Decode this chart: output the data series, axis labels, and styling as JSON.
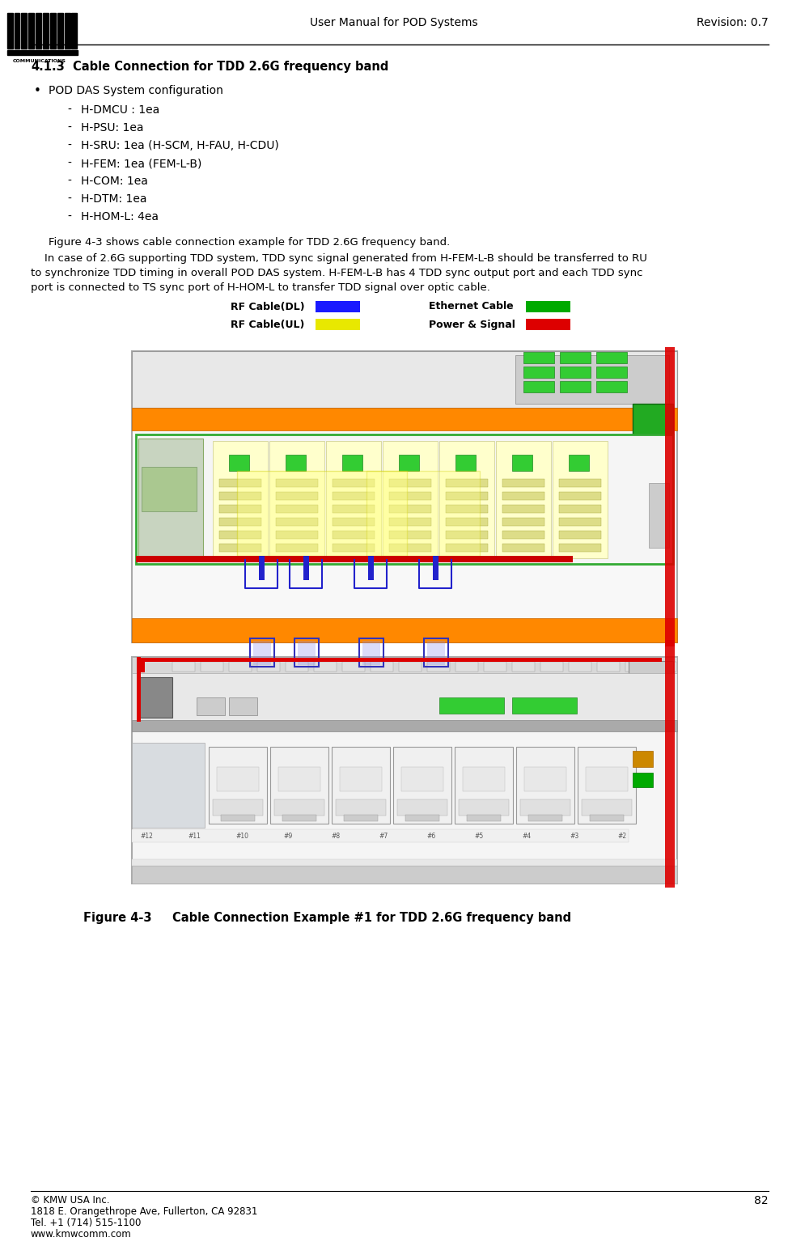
{
  "page_width": 9.74,
  "page_height": 15.4,
  "dpi": 100,
  "bg_color": "#ffffff",
  "header_title": "User Manual for POD Systems",
  "header_revision": "Revision: 0.7",
  "section_title_num": "4.1.3",
  "section_title_text": "Cable Connection for TDD 2.6G frequency band",
  "bullet_title": "POD DAS System configuration",
  "items": [
    "H-DMCU : 1ea",
    "H-PSU: 1ea",
    "H-SRU: 1ea (H-SCM, H-FAU, H-CDU)",
    "H-FEM: 1ea (FEM-L-B)",
    "H-COM: 1ea",
    "H-DTM: 1ea",
    "H-HOM-L: 4ea"
  ],
  "para1": "Figure 4-3 shows cable connection example for TDD 2.6G frequency band.",
  "para2_line1": "    In case of 2.6G supporting TDD system, TDD sync signal generated from H-FEM-L-B should be transferred to RU",
  "para2_line2": "to synchronize TDD timing in overall POD DAS system. H-FEM-L-B has 4 TDD sync output port and each TDD sync",
  "para2_line3": "port is connected to TS sync port of H-HOM-L to transfer TDD signal over optic cable.",
  "legend_rf_dl": "RF Cable(DL)",
  "legend_rf_dl_color": "#1a1aff",
  "legend_rf_ul": "RF Cable(UL)",
  "legend_rf_ul_color": "#e8e800",
  "legend_eth": "Ethernet Cable",
  "legend_eth_color": "#00aa00",
  "legend_pwr": "Power & Signal",
  "legend_pwr_color": "#dd0000",
  "fig_caption_label": "Figure 4-3",
  "fig_caption_text": "Cable Connection Example #1 for TDD 2.6G frequency band",
  "footer_copy": "© KMW USA Inc.",
  "footer_addr": "1818 E. Orangethrope Ave, Fullerton, CA 92831",
  "footer_tel": "Tel. +1 (714) 515-1100",
  "footer_web": "www.kmwcomm.com",
  "footer_page": "82"
}
